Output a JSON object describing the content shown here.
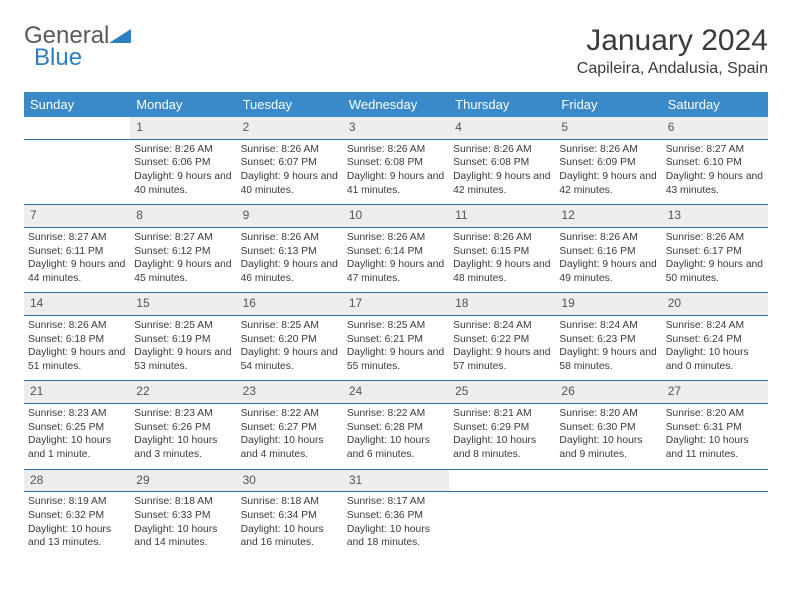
{
  "brand": {
    "line1": "General",
    "line2": "Blue"
  },
  "title": "January 2024",
  "location": "Capileira, Andalusia, Spain",
  "colors": {
    "header_bg": "#3a89c9",
    "header_text": "#ffffff",
    "row_divider": "#2d6fa8",
    "daynum_bg": "#ededed",
    "text": "#3a3a3a",
    "brand_blue": "#2d7fc1"
  },
  "layout": {
    "columns": 7,
    "rows": 5,
    "first_day_column": 1
  },
  "typography": {
    "title_fontsize": 30,
    "location_fontsize": 16,
    "header_fontsize": 13,
    "daynum_fontsize": 12,
    "cell_fontsize": 10.3
  },
  "day_headers": [
    "Sunday",
    "Monday",
    "Tuesday",
    "Wednesday",
    "Thursday",
    "Friday",
    "Saturday"
  ],
  "days": [
    {
      "n": "1",
      "sr": "8:26 AM",
      "ss": "6:06 PM",
      "dl": "9 hours and 40 minutes."
    },
    {
      "n": "2",
      "sr": "8:26 AM",
      "ss": "6:07 PM",
      "dl": "9 hours and 40 minutes."
    },
    {
      "n": "3",
      "sr": "8:26 AM",
      "ss": "6:08 PM",
      "dl": "9 hours and 41 minutes."
    },
    {
      "n": "4",
      "sr": "8:26 AM",
      "ss": "6:08 PM",
      "dl": "9 hours and 42 minutes."
    },
    {
      "n": "5",
      "sr": "8:26 AM",
      "ss": "6:09 PM",
      "dl": "9 hours and 42 minutes."
    },
    {
      "n": "6",
      "sr": "8:27 AM",
      "ss": "6:10 PM",
      "dl": "9 hours and 43 minutes."
    },
    {
      "n": "7",
      "sr": "8:27 AM",
      "ss": "6:11 PM",
      "dl": "9 hours and 44 minutes."
    },
    {
      "n": "8",
      "sr": "8:27 AM",
      "ss": "6:12 PM",
      "dl": "9 hours and 45 minutes."
    },
    {
      "n": "9",
      "sr": "8:26 AM",
      "ss": "6:13 PM",
      "dl": "9 hours and 46 minutes."
    },
    {
      "n": "10",
      "sr": "8:26 AM",
      "ss": "6:14 PM",
      "dl": "9 hours and 47 minutes."
    },
    {
      "n": "11",
      "sr": "8:26 AM",
      "ss": "6:15 PM",
      "dl": "9 hours and 48 minutes."
    },
    {
      "n": "12",
      "sr": "8:26 AM",
      "ss": "6:16 PM",
      "dl": "9 hours and 49 minutes."
    },
    {
      "n": "13",
      "sr": "8:26 AM",
      "ss": "6:17 PM",
      "dl": "9 hours and 50 minutes."
    },
    {
      "n": "14",
      "sr": "8:26 AM",
      "ss": "6:18 PM",
      "dl": "9 hours and 51 minutes."
    },
    {
      "n": "15",
      "sr": "8:25 AM",
      "ss": "6:19 PM",
      "dl": "9 hours and 53 minutes."
    },
    {
      "n": "16",
      "sr": "8:25 AM",
      "ss": "6:20 PM",
      "dl": "9 hours and 54 minutes."
    },
    {
      "n": "17",
      "sr": "8:25 AM",
      "ss": "6:21 PM",
      "dl": "9 hours and 55 minutes."
    },
    {
      "n": "18",
      "sr": "8:24 AM",
      "ss": "6:22 PM",
      "dl": "9 hours and 57 minutes."
    },
    {
      "n": "19",
      "sr": "8:24 AM",
      "ss": "6:23 PM",
      "dl": "9 hours and 58 minutes."
    },
    {
      "n": "20",
      "sr": "8:24 AM",
      "ss": "6:24 PM",
      "dl": "10 hours and 0 minutes."
    },
    {
      "n": "21",
      "sr": "8:23 AM",
      "ss": "6:25 PM",
      "dl": "10 hours and 1 minute."
    },
    {
      "n": "22",
      "sr": "8:23 AM",
      "ss": "6:26 PM",
      "dl": "10 hours and 3 minutes."
    },
    {
      "n": "23",
      "sr": "8:22 AM",
      "ss": "6:27 PM",
      "dl": "10 hours and 4 minutes."
    },
    {
      "n": "24",
      "sr": "8:22 AM",
      "ss": "6:28 PM",
      "dl": "10 hours and 6 minutes."
    },
    {
      "n": "25",
      "sr": "8:21 AM",
      "ss": "6:29 PM",
      "dl": "10 hours and 8 minutes."
    },
    {
      "n": "26",
      "sr": "8:20 AM",
      "ss": "6:30 PM",
      "dl": "10 hours and 9 minutes."
    },
    {
      "n": "27",
      "sr": "8:20 AM",
      "ss": "6:31 PM",
      "dl": "10 hours and 11 minutes."
    },
    {
      "n": "28",
      "sr": "8:19 AM",
      "ss": "6:32 PM",
      "dl": "10 hours and 13 minutes."
    },
    {
      "n": "29",
      "sr": "8:18 AM",
      "ss": "6:33 PM",
      "dl": "10 hours and 14 minutes."
    },
    {
      "n": "30",
      "sr": "8:18 AM",
      "ss": "6:34 PM",
      "dl": "10 hours and 16 minutes."
    },
    {
      "n": "31",
      "sr": "8:17 AM",
      "ss": "6:36 PM",
      "dl": "10 hours and 18 minutes."
    }
  ],
  "labels": {
    "sunrise": "Sunrise:",
    "sunset": "Sunset:",
    "daylight": "Daylight:"
  }
}
